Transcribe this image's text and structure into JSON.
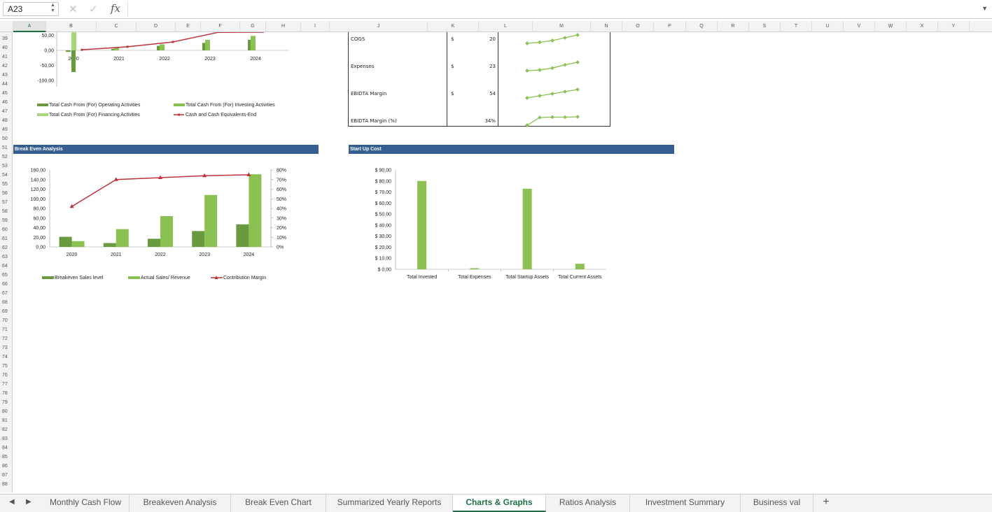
{
  "formula_bar": {
    "name_box": "A23",
    "fx_label": "fx",
    "formula": ""
  },
  "columns": [
    "A",
    "B",
    "C",
    "D",
    "E",
    "F",
    "G",
    "H",
    "I",
    "J",
    "K",
    "L",
    "M",
    "N",
    "O",
    "P",
    "Q",
    "R",
    "S",
    "T",
    "U",
    "V",
    "W",
    "X",
    "Y"
  ],
  "selected_column": "A",
  "rows_first": 39,
  "rows_last": 88,
  "cash_flow_chart": {
    "chart_data": {
      "type": "bar",
      "categories": [
        "2020",
        "2021",
        "2022",
        "2023",
        "2024"
      ],
      "y_tick_labels": [
        "50,00",
        "0,00",
        "-50,00",
        "-100,00"
      ],
      "yticks": [
        50,
        0,
        -50,
        -100
      ],
      "series": [
        {
          "name": "Total Cash From (For) Operating Activities",
          "values": [
            -5,
            5,
            15,
            25,
            35
          ],
          "color": "#6a9a3f"
        },
        {
          "name": "Total Cash From (For) Investing Activities",
          "values": [
            0,
            10,
            20,
            35,
            48
          ],
          "color": "#8bc152"
        },
        {
          "name": "Total Cash From (For) Financing Activities",
          "values": [
            60,
            0,
            0,
            0,
            0
          ],
          "color": "#a8d67a"
        },
        {
          "name": "Cash and Cash Equivalents-End",
          "values": [
            2,
            12,
            28,
            60,
            90
          ],
          "color": "#c0313a",
          "kind": "line"
        }
      ],
      "extra_bar": {
        "category": "2020",
        "value": -72
      }
    }
  },
  "sparkline_table": {
    "rows": [
      {
        "label": "COGS",
        "currency": "$",
        "value": "20"
      },
      {
        "label": "Expenses",
        "currency": "$",
        "value": "23"
      },
      {
        "label": "EBIDTA Margin",
        "currency": "$",
        "value": "54"
      },
      {
        "label": "EBIDTA Margin (%)",
        "currency": "",
        "value": "34%"
      }
    ],
    "sparklines": [
      [
        10,
        12,
        15,
        20,
        25
      ],
      [
        10,
        11,
        14,
        19,
        23
      ],
      [
        50,
        51,
        52,
        53,
        54
      ],
      [
        5,
        28,
        29,
        29,
        30
      ]
    ],
    "sparkline_color": "#8bc152"
  },
  "break_even": {
    "banner": "Break Even Analysis",
    "chart_data": {
      "type": "bar",
      "categories": [
        "2020",
        "2021",
        "2022",
        "2023",
        "2024"
      ],
      "y_tick_labels": [
        "160,00",
        "140,00",
        "120,00",
        "100,00",
        "80,00",
        "60,00",
        "40,00",
        "20,00",
        "0,00"
      ],
      "y2_tick_labels": [
        "80%",
        "70%",
        "60%",
        "50%",
        "40%",
        "30%",
        "20%",
        "10%",
        "0%"
      ],
      "ylim": [
        0,
        160
      ],
      "y2lim": [
        0,
        80
      ],
      "series": [
        {
          "name": "Breakeven Sales level",
          "values": [
            21,
            8,
            17,
            33,
            47
          ],
          "color": "#6a9a3f"
        },
        {
          "name": "Actual Sales/ Revenue",
          "values": [
            12,
            37,
            64,
            108,
            151
          ],
          "color": "#8bc152"
        },
        {
          "name": "Contribution Margin",
          "values": [
            42,
            70,
            72,
            74,
            75
          ],
          "color": "#c0313a",
          "kind": "line",
          "axis": "secondary"
        }
      ]
    }
  },
  "startup": {
    "banner": "Start Up Cost",
    "chart_data": {
      "type": "bar",
      "categories": [
        "Total Invested",
        "Total Expenses",
        "Total Startup  Assets",
        "Total Current Assets"
      ],
      "y_tick_labels": [
        "$ 90,00",
        "$ 80,00",
        "$ 70,00",
        "$ 60,00",
        "$ 50,00",
        "$ 40,00",
        "$ 30,00",
        "$ 20,00",
        "$ 10,00",
        "$ 0,00"
      ],
      "ylim": [
        0,
        90
      ],
      "values": [
        80,
        1,
        73,
        5
      ],
      "color": "#8bc152"
    }
  },
  "tabs": [
    {
      "label": "Monthly Cash Flow",
      "active": false
    },
    {
      "label": "Breakeven Analysis",
      "active": false
    },
    {
      "label": "Break Even Chart",
      "active": false
    },
    {
      "label": "Summarized Yearly Reports",
      "active": false
    },
    {
      "label": "Charts & Graphs",
      "active": true
    },
    {
      "label": "Ratios Analysis",
      "active": false
    },
    {
      "label": "Investment Summary",
      "active": false
    },
    {
      "label": "Business val",
      "active": false
    }
  ],
  "add_sheet_label": "+"
}
